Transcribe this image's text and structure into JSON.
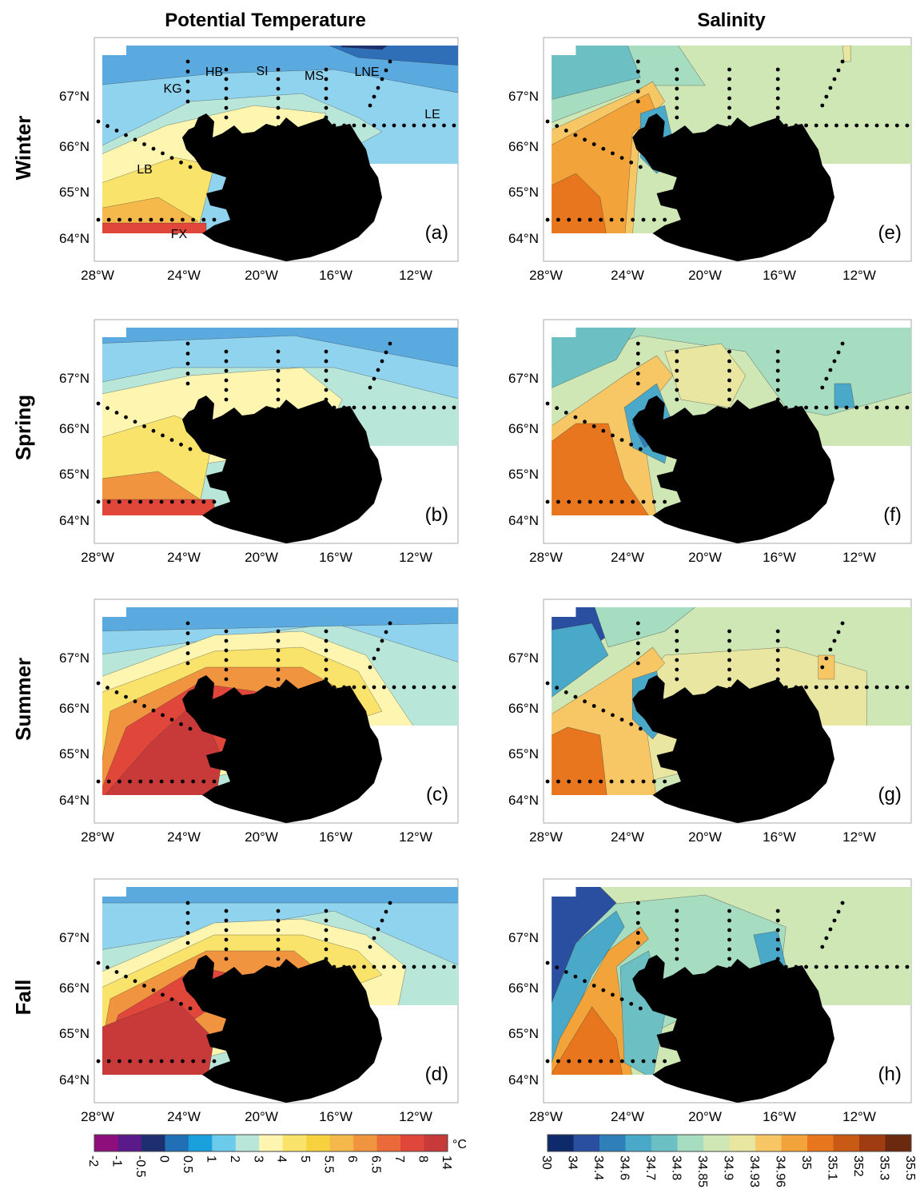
{
  "column_titles": [
    "Potential Temperature",
    "Salinity"
  ],
  "row_labels": [
    "Winter",
    "Spring",
    "Summer",
    "Fall"
  ],
  "panel_labels": [
    "(a)",
    "(b)",
    "(c)",
    "(d)",
    "(e)",
    "(f)",
    "(g)",
    "(h)"
  ],
  "latitude_labels": [
    "67°N",
    "66°N",
    "65°N",
    "64°N"
  ],
  "longitude_labels": [
    "28°W",
    "24°W",
    "20°W",
    "16°W",
    "12°W"
  ],
  "place_labels": [
    "HB",
    "SI",
    "MS",
    "LNE",
    "KG",
    "LE",
    "LB",
    "FX"
  ],
  "temperature_colorbar": {
    "unit": "°C",
    "labels": [
      "-2",
      "-1",
      "-0.5",
      "0",
      "0.5",
      "1",
      "2",
      "3",
      "4",
      "5",
      "5.5",
      "6",
      "6.5",
      "7",
      "8",
      "14"
    ],
    "colors": [
      "#8e0f7c",
      "#5b1a8a",
      "#1d2f6f",
      "#2170b5",
      "#1aa0dc",
      "#6ccbeb",
      "#b8e6d8",
      "#fdf5b0",
      "#f9e36a",
      "#f8d23e",
      "#f5b84a",
      "#f09440",
      "#ea6a3a",
      "#e0463a",
      "#c83a3a"
    ]
  },
  "salinity_colorbar": {
    "labels": [
      "30",
      "34",
      "34.4",
      "34.6",
      "34.7",
      "34.8",
      "34.85",
      "34.9",
      "34.93",
      "34.96",
      "35",
      "35.1",
      "352",
      "35.3",
      "35.5"
    ],
    "colors": [
      "#0f2a6a",
      "#2a4fa0",
      "#2f7fb8",
      "#4aa8c8",
      "#6cc0c4",
      "#a6dcc0",
      "#cfe7b4",
      "#e8e6a0",
      "#f7c766",
      "#f2a43a",
      "#e8761e",
      "#c85a16",
      "#a03c12",
      "#6b2a10"
    ]
  }
}
